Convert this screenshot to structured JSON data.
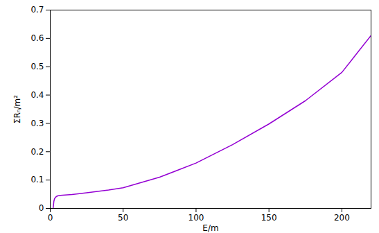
{
  "chart_data": {
    "type": "line",
    "x_label": "E/m",
    "y_label": "ΣRₙ/m²",
    "x": [
      2,
      2.5,
      3,
      4,
      5,
      7,
      10,
      15,
      25,
      40,
      50,
      75,
      100,
      125,
      150,
      175,
      200,
      210,
      220
    ],
    "series": [
      {
        "name": "ΣRₙ/m²",
        "color": "#9400d3",
        "values": [
          0,
          0.025,
          0.035,
          0.041,
          0.044,
          0.046,
          0.047,
          0.049,
          0.055,
          0.065,
          0.073,
          0.11,
          0.16,
          0.225,
          0.298,
          0.38,
          0.48,
          0.545,
          0.61
        ]
      }
    ],
    "xlim": [
      0,
      220
    ],
    "ylim": [
      0,
      0.7
    ],
    "xticks": [
      0,
      50,
      100,
      150,
      200
    ],
    "yticks": [
      0,
      0.1,
      0.2,
      0.3,
      0.4,
      0.5,
      0.6,
      0.7
    ],
    "grid": false
  }
}
